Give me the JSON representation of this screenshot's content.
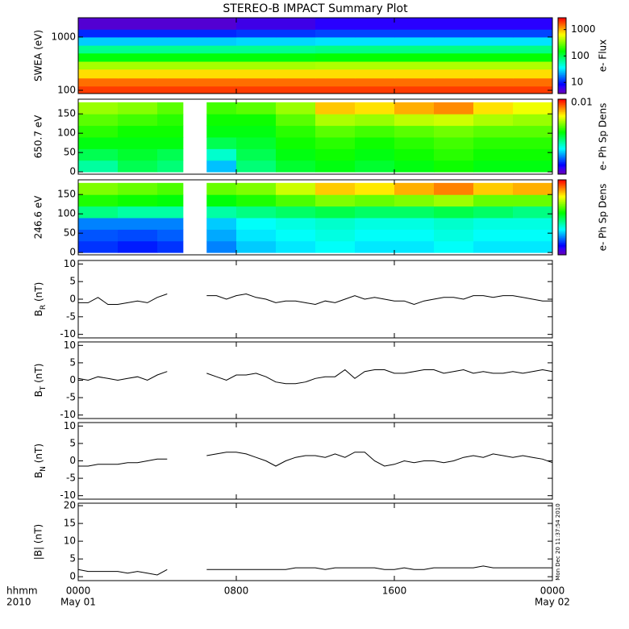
{
  "title": "STEREO-B IMPACT Summary Plot",
  "xaxis": {
    "xlim": [
      0,
      24
    ],
    "xticks": [
      {
        "value": 0,
        "label": "0000"
      },
      {
        "value": 8,
        "label": "0800"
      },
      {
        "value": 16,
        "label": "1600"
      },
      {
        "value": 24,
        "label": "0000"
      }
    ],
    "date_labels": [
      {
        "value": 0,
        "label": "May 01"
      },
      {
        "value": 24,
        "label": "May 02"
      }
    ],
    "left_labels": [
      "hhmm",
      "2010"
    ],
    "timestamp": "Mon Dec 20 11:37:54 2010"
  },
  "chart_data": [
    {
      "type": "heatmap",
      "ylabel": "SWEA (eV)",
      "ylog": true,
      "ylim": [
        87,
        2300
      ],
      "yticks": [
        100,
        1000
      ],
      "zlabel": "e- Flux",
      "zlog": true,
      "zlim": [
        3.8,
        2800
      ],
      "zticks": [
        10,
        100,
        1000
      ],
      "colormap": "rainbow",
      "xbins": [
        0,
        2,
        4,
        6,
        8,
        10,
        12,
        14,
        16,
        18,
        20,
        22,
        24
      ],
      "ybins": [
        87,
        120,
        170,
        250,
        350,
        500,
        700,
        1000,
        1400,
        2300
      ],
      "z": [
        [
          2000,
          2000,
          2000,
          2000,
          2000,
          2000,
          2000,
          2000,
          2000,
          2000,
          2000,
          2000
        ],
        [
          1500,
          1500,
          1500,
          1500,
          1500,
          1500,
          1500,
          1500,
          1500,
          1500,
          1500,
          1500
        ],
        [
          800,
          800,
          800,
          800,
          800,
          800,
          800,
          800,
          800,
          800,
          800,
          800
        ],
        [
          400,
          400,
          400,
          400,
          400,
          400,
          420,
          420,
          420,
          420,
          420,
          420
        ],
        [
          150,
          150,
          150,
          150,
          150,
          150,
          160,
          160,
          160,
          160,
          160,
          160
        ],
        [
          70,
          70,
          70,
          70,
          70,
          70,
          75,
          75,
          75,
          75,
          75,
          75
        ],
        [
          28,
          28,
          28,
          28,
          30,
          30,
          32,
          32,
          32,
          32,
          32,
          32
        ],
        [
          11,
          11,
          11,
          11,
          12,
          12,
          13,
          13,
          13,
          13,
          13,
          13
        ],
        [
          5,
          5,
          5,
          5,
          6,
          6,
          7,
          7,
          7,
          7,
          7,
          7
        ]
      ]
    },
    {
      "type": "heatmap",
      "ylabel": "650.7 eV",
      "ylim": [
        -6,
        188
      ],
      "yticks": [
        0,
        50,
        100,
        150
      ],
      "zlabel": "e- Ph Sp Dens",
      "zlog": true,
      "zlim": [
        0.0005,
        0.01
      ],
      "zticks": [
        0.01
      ],
      "colormap": "rainbow",
      "xbins": [
        0,
        2,
        4,
        5.3,
        6.5,
        8,
        10,
        12,
        14,
        16,
        18,
        20,
        22,
        24
      ],
      "ybins": [
        0,
        30,
        60,
        90,
        120,
        150,
        180
      ],
      "z": [
        [
          0.0018,
          0.0022,
          0.002,
          null,
          0.0012,
          0.002,
          0.0024,
          0.0026,
          0.0024,
          0.0026,
          0.0028,
          0.0026,
          0.0026
        ],
        [
          0.0022,
          0.0024,
          0.0022,
          null,
          0.0016,
          0.0022,
          0.0026,
          0.0028,
          0.0026,
          0.0028,
          0.003,
          0.0028,
          0.0028
        ],
        [
          0.0026,
          0.0026,
          0.0026,
          null,
          0.0022,
          0.0024,
          0.0028,
          0.003,
          0.0028,
          0.003,
          0.0032,
          0.003,
          0.003
        ],
        [
          0.003,
          0.0028,
          0.0028,
          null,
          0.0026,
          0.0026,
          0.003,
          0.0034,
          0.0032,
          0.0034,
          0.0036,
          0.0034,
          0.0034
        ],
        [
          0.0034,
          0.0032,
          0.003,
          null,
          0.0028,
          0.0028,
          0.0034,
          0.0042,
          0.004,
          0.0044,
          0.0046,
          0.0042,
          0.004
        ],
        [
          0.004,
          0.0038,
          0.0034,
          null,
          0.0032,
          0.0034,
          0.004,
          0.006,
          0.0056,
          0.0064,
          0.007,
          0.0056,
          0.005
        ]
      ]
    },
    {
      "type": "heatmap",
      "ylabel": "246.6 eV",
      "ylim": [
        -6,
        188
      ],
      "yticks": [
        0,
        50,
        100,
        150
      ],
      "zlabel": "e- Ph Sp Dens",
      "zlog": true,
      "zlim": [
        0.001,
        0.1
      ],
      "colormap": "rainbow",
      "xbins": [
        0,
        2,
        4,
        5.3,
        6.5,
        8,
        10,
        12,
        14,
        16,
        18,
        20,
        22,
        24
      ],
      "ybins": [
        0,
        30,
        60,
        90,
        120,
        150,
        180
      ],
      "z": [
        [
          0.0022,
          0.002,
          0.0022,
          null,
          0.003,
          0.004,
          0.0045,
          0.005,
          0.0045,
          0.0045,
          0.005,
          0.0045,
          0.0045
        ],
        [
          0.0025,
          0.0024,
          0.0026,
          null,
          0.0035,
          0.0045,
          0.005,
          0.0055,
          0.005,
          0.005,
          0.0055,
          0.005,
          0.005
        ],
        [
          0.003,
          0.003,
          0.003,
          null,
          0.004,
          0.005,
          0.0055,
          0.006,
          0.0055,
          0.0055,
          0.006,
          0.0055,
          0.0055
        ],
        [
          0.008,
          0.007,
          0.007,
          null,
          0.007,
          0.008,
          0.009,
          0.01,
          0.009,
          0.009,
          0.01,
          0.009,
          0.008
        ],
        [
          0.015,
          0.014,
          0.013,
          null,
          0.013,
          0.015,
          0.018,
          0.022,
          0.02,
          0.022,
          0.025,
          0.02,
          0.02
        ],
        [
          0.022,
          0.02,
          0.018,
          null,
          0.02,
          0.022,
          0.03,
          0.045,
          0.04,
          0.05,
          0.06,
          0.045,
          0.05
        ]
      ]
    },
    {
      "type": "line",
      "ylabel": [
        "B",
        "R",
        " (nT)"
      ],
      "ylim": [
        -11,
        11
      ],
      "yticks": [
        -10,
        -5,
        0,
        5,
        10
      ],
      "color": "#000000",
      "x": [
        0,
        0.5,
        1,
        1.5,
        2,
        2.5,
        3,
        3.5,
        4,
        4.5,
        5,
        5.5,
        6,
        6.5,
        7,
        7.5,
        8,
        8.5,
        9,
        9.5,
        10,
        10.5,
        11,
        11.5,
        12,
        12.5,
        13,
        13.5,
        14,
        14.5,
        15,
        15.5,
        16,
        16.5,
        17,
        17.5,
        18,
        18.5,
        19,
        19.5,
        20,
        20.5,
        21,
        21.5,
        22,
        22.5,
        23,
        23.5,
        24
      ],
      "values": [
        -1,
        -1,
        0.5,
        -1.5,
        -1.5,
        -1,
        -0.5,
        -1,
        0.5,
        1.5,
        null,
        null,
        null,
        1,
        1,
        0,
        1,
        1.5,
        0.5,
        0,
        -1,
        -0.5,
        -0.5,
        -1,
        -1.5,
        -0.5,
        -1,
        0,
        1,
        0,
        0.5,
        0,
        -0.5,
        -0.5,
        -1.5,
        -0.5,
        0,
        0.5,
        0.5,
        0,
        1,
        1,
        0.5,
        1,
        1,
        0.5,
        0,
        -0.5,
        -0.5
      ]
    },
    {
      "type": "line",
      "ylabel": [
        "B",
        "T",
        " (nT)"
      ],
      "ylim": [
        -11,
        11
      ],
      "yticks": [
        -10,
        -5,
        0,
        5,
        10
      ],
      "color": "#000000",
      "x": [
        0,
        0.5,
        1,
        1.5,
        2,
        2.5,
        3,
        3.5,
        4,
        4.5,
        5,
        5.5,
        6,
        6.5,
        7,
        7.5,
        8,
        8.5,
        9,
        9.5,
        10,
        10.5,
        11,
        11.5,
        12,
        12.5,
        13,
        13.5,
        14,
        14.5,
        15,
        15.5,
        16,
        16.5,
        17,
        17.5,
        18,
        18.5,
        19,
        19.5,
        20,
        20.5,
        21,
        21.5,
        22,
        22.5,
        23,
        23.5,
        24
      ],
      "values": [
        0.5,
        0,
        1,
        0.5,
        0,
        0.5,
        1,
        0,
        1.5,
        2.5,
        null,
        null,
        null,
        2,
        1,
        0,
        1.5,
        1.5,
        2,
        1,
        -0.5,
        -1,
        -1,
        -0.5,
        0.5,
        1,
        1,
        3,
        0.5,
        2.5,
        3,
        3,
        2,
        2,
        2.5,
        3,
        3,
        2,
        2.5,
        3,
        2,
        2.5,
        2,
        2,
        2.5,
        2,
        2.5,
        3,
        2.5
      ]
    },
    {
      "type": "line",
      "ylabel": [
        "B",
        "N",
        " (nT)"
      ],
      "ylim": [
        -11,
        11
      ],
      "yticks": [
        -10,
        -5,
        0,
        5,
        10
      ],
      "color": "#000000",
      "x": [
        0,
        0.5,
        1,
        1.5,
        2,
        2.5,
        3,
        3.5,
        4,
        4.5,
        5,
        5.5,
        6,
        6.5,
        7,
        7.5,
        8,
        8.5,
        9,
        9.5,
        10,
        10.5,
        11,
        11.5,
        12,
        12.5,
        13,
        13.5,
        14,
        14.5,
        15,
        15.5,
        16,
        16.5,
        17,
        17.5,
        18,
        18.5,
        19,
        19.5,
        20,
        20.5,
        21,
        21.5,
        22,
        22.5,
        23,
        23.5,
        24
      ],
      "values": [
        -1.5,
        -1.5,
        -1,
        -1,
        -1,
        -0.5,
        -0.5,
        0,
        0.5,
        0.5,
        null,
        null,
        null,
        1.5,
        2,
        2.5,
        2.5,
        2,
        1,
        0,
        -1.5,
        0,
        1,
        1.5,
        1.5,
        1,
        2,
        1,
        2.5,
        2.5,
        0,
        -1.5,
        -1,
        0,
        -0.5,
        0,
        0,
        -0.5,
        0,
        1,
        1.5,
        1,
        2,
        1.5,
        1,
        1.5,
        1,
        0.5,
        -0.5
      ]
    },
    {
      "type": "line",
      "ylabel": "|B| (nT)",
      "ylim": [
        -1.1,
        20.7
      ],
      "yticks": [
        0,
        5,
        10,
        15,
        20
      ],
      "color": "#000000",
      "x": [
        0,
        0.5,
        1,
        1.5,
        2,
        2.5,
        3,
        3.5,
        4,
        4.5,
        5,
        5.5,
        6,
        6.5,
        7,
        7.5,
        8,
        8.5,
        9,
        9.5,
        10,
        10.5,
        11,
        11.5,
        12,
        12.5,
        13,
        13.5,
        14,
        14.5,
        15,
        15.5,
        16,
        16.5,
        17,
        17.5,
        18,
        18.5,
        19,
        19.5,
        20,
        20.5,
        21,
        21.5,
        22,
        22.5,
        23,
        23.5,
        24
      ],
      "values": [
        2,
        1.5,
        1.5,
        1.5,
        1.5,
        1,
        1.5,
        1,
        0.5,
        2,
        null,
        null,
        null,
        2,
        2,
        2,
        2,
        2,
        2,
        2,
        2,
        2,
        2.5,
        2.5,
        2.5,
        2,
        2.5,
        2.5,
        2.5,
        2.5,
        2.5,
        2,
        2,
        2.5,
        2,
        2,
        2.5,
        2.5,
        2.5,
        2.5,
        2.5,
        3,
        2.5,
        2.5,
        2.5,
        2.5,
        2.5,
        2.5,
        2.5
      ]
    }
  ]
}
